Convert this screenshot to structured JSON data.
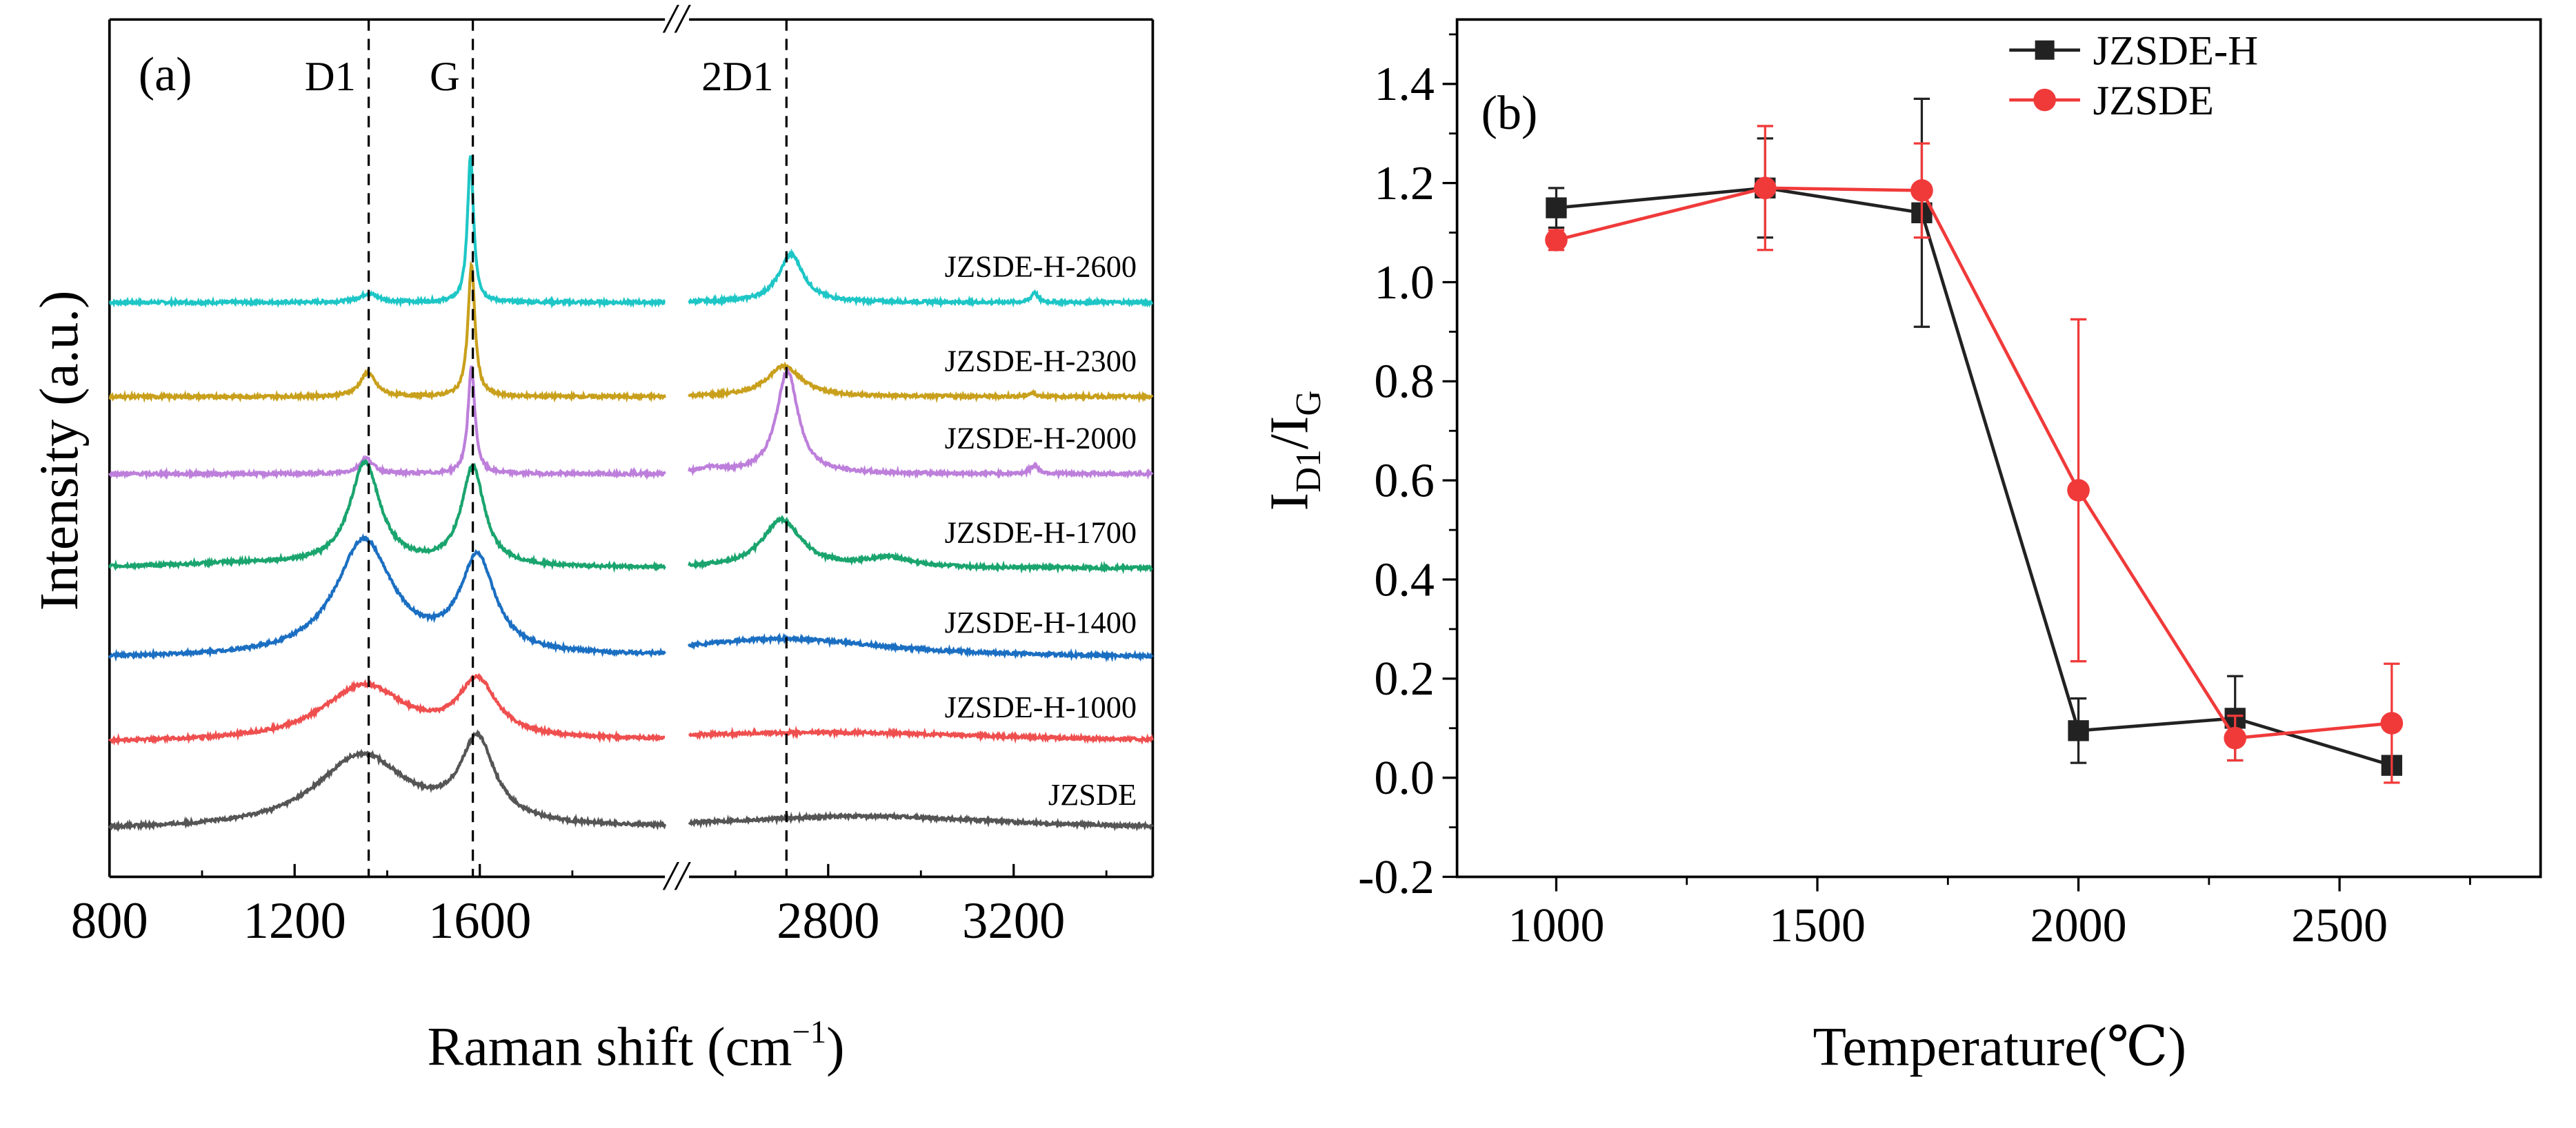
{
  "chart_data": [
    {
      "type": "line",
      "panel_label": "(a)",
      "title": "",
      "xlabel": "Raman shift (cm",
      "xlabel_sup": "−1",
      "xlabel_end": ")",
      "ylabel": "Intensity (a.u.)",
      "x_segments": [
        [
          800,
          2000
        ],
        [
          2500,
          3500
        ]
      ],
      "xticks_labeled": [
        800,
        1200,
        1600,
        2800,
        3200
      ],
      "xticks_minor": [
        1000,
        1400,
        1800,
        2600,
        3000,
        3400
      ],
      "ylim": [
        0,
        100
      ],
      "yticks": "none",
      "axis_break": "//",
      "reference_lines": [
        {
          "label": "D1",
          "x": 1360
        },
        {
          "label": "G",
          "x": 1585
        },
        {
          "label": "2D1",
          "x": 2710
        }
      ],
      "series": [
        {
          "name": "JZSDE-H-2600",
          "color": "#1ec6c6",
          "offset": 67,
          "peaks": [
            [
              1360,
              1,
              25
            ],
            [
              1580,
              17,
              8
            ],
            [
              2720,
              5.6,
              32
            ],
            [
              3245,
              1.2,
              8
            ]
          ]
        },
        {
          "name": "JZSDE-H-2300",
          "color": "#c9a01c",
          "offset": 56,
          "peaks": [
            [
              1358,
              2.8,
              20
            ],
            [
              1582,
              15.4,
              9
            ],
            [
              2705,
              3.6,
              45
            ],
            [
              3240,
              0.4,
              10
            ]
          ]
        },
        {
          "name": "JZSDE-H-2000",
          "color": "#bd7fdb",
          "offset": 47,
          "peaks": [
            [
              1355,
              1.8,
              18
            ],
            [
              1582,
              12.5,
              9
            ],
            [
              2712,
              12,
              28
            ],
            [
              2550,
              0.6,
              30
            ],
            [
              3245,
              1,
              10
            ]
          ]
        },
        {
          "name": "JZSDE-H-1700",
          "color": "#1aa46e",
          "offset": 36,
          "peaks": [
            [
              1352,
              12,
              40
            ],
            [
              1585,
              11.5,
              30
            ],
            [
              2700,
              5.6,
              50
            ],
            [
              2930,
              1.1,
              60
            ],
            [
              1100,
              0.5,
              200
            ]
          ]
        },
        {
          "name": "JZSDE-H-1400",
          "color": "#1b6fc2",
          "offset": 25.5,
          "peaks": [
            [
              1350,
              13.5,
              75
            ],
            [
              1595,
              11,
              45
            ],
            [
              2700,
              2.2,
              280
            ]
          ]
        },
        {
          "name": "JZSDE-H-1000",
          "color": "#ef4f4f",
          "offset": 15.6,
          "peaks": [
            [
              1350,
              6.5,
              110
            ],
            [
              1595,
              6.5,
              50
            ],
            [
              2800,
              1.2,
              500
            ]
          ]
        },
        {
          "name": "JZSDE",
          "color": "#555555",
          "offset": 5.4,
          "peaks": [
            [
              1345,
              8.6,
              120
            ],
            [
              1595,
              9.5,
              45
            ],
            [
              2880,
              1.6,
              400
            ]
          ]
        }
      ]
    },
    {
      "type": "line",
      "panel_label": "(b)",
      "title": "",
      "xlabel": "Temperature(℃)",
      "ylabel_main": "I",
      "ylabel_sub1": "D1",
      "ylabel_mid": "/I",
      "ylabel_sub2": "G",
      "xlim": [
        810,
        2885
      ],
      "ylim": [
        -0.2,
        1.53
      ],
      "xticks": [
        1000,
        1500,
        2000,
        2500
      ],
      "yticks": [
        -0.2,
        0.0,
        0.2,
        0.4,
        0.6,
        0.8,
        1.0,
        1.2,
        1.4
      ],
      "ytick_labels": [
        "-0.2",
        "0.0",
        "0.2",
        "0.4",
        "0.6",
        "0.8",
        "1.0",
        "1.2",
        "1.4"
      ],
      "legend_placement": "top-right",
      "series": [
        {
          "name": "JZSDE-H",
          "color": "#222222",
          "marker": "square",
          "x": [
            1000,
            1400,
            1700,
            2000,
            2300,
            2600
          ],
          "y": [
            1.15,
            1.19,
            1.14,
            0.095,
            0.12,
            0.025
          ],
          "err": [
            0.04,
            0.1,
            0.23,
            0.065,
            0.085,
            0.01
          ]
        },
        {
          "name": "JZSDE",
          "color": "#f03a3a",
          "marker": "circle",
          "x": [
            1000,
            1400,
            1700,
            2000,
            2300,
            2600
          ],
          "y": [
            1.085,
            1.19,
            1.185,
            0.58,
            0.08,
            0.11
          ],
          "err": [
            0.02,
            0.125,
            0.095,
            0.345,
            0.045,
            0.12
          ]
        }
      ]
    }
  ]
}
